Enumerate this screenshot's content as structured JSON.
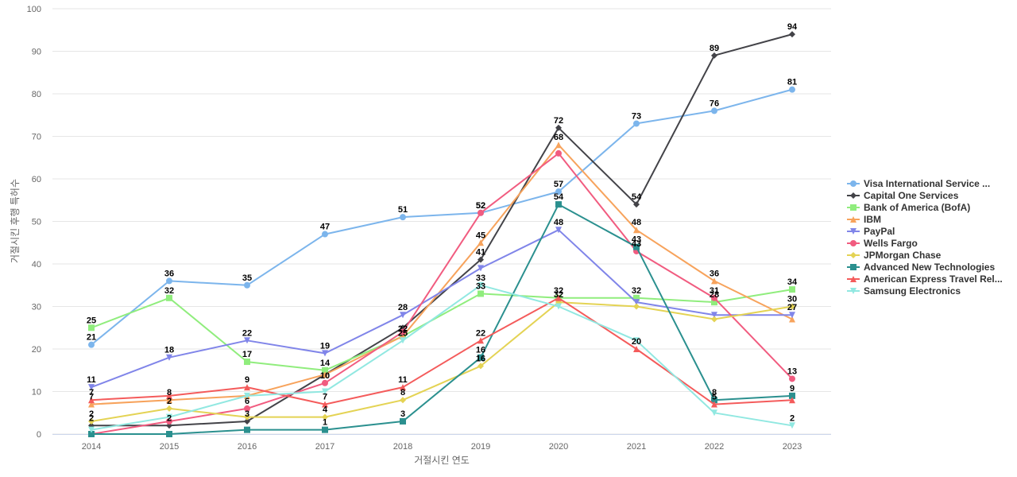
{
  "chart_data": {
    "type": "line",
    "title": "",
    "xlabel": "거절시킨 연도",
    "ylabel": "거절시킨 후행 특허수",
    "x": [
      "2014",
      "2015",
      "2016",
      "2017",
      "2018",
      "2019",
      "2020",
      "2021",
      "2022",
      "2023"
    ],
    "ylim": [
      0,
      100
    ],
    "yticks": [
      0,
      10,
      20,
      30,
      40,
      50,
      60,
      70,
      80,
      90,
      100
    ],
    "grid": true,
    "legend_position": "right",
    "series": [
      {
        "name": "Visa International Service ...",
        "color": "#7cb5ec",
        "marker": "circle",
        "values": [
          21,
          36,
          35,
          47,
          51,
          52,
          57,
          73,
          76,
          81
        ]
      },
      {
        "name": "Capital One Services",
        "color": "#434348",
        "marker": "diamond",
        "values": [
          2,
          2,
          3,
          14,
          25,
          41,
          72,
          54,
          89,
          94
        ]
      },
      {
        "name": "Bank of America (BofA)",
        "color": "#90ed7d",
        "marker": "square",
        "values": [
          25,
          32,
          17,
          15,
          23,
          33,
          32,
          32,
          31,
          34
        ]
      },
      {
        "name": "IBM",
        "color": "#f7a35c",
        "marker": "triangle",
        "values": [
          7,
          8,
          9,
          14,
          23,
          45,
          68,
          48,
          36,
          27
        ]
      },
      {
        "name": "PayPal",
        "color": "#8085e9",
        "marker": "triangle-down",
        "values": [
          11,
          18,
          22,
          19,
          28,
          39,
          48,
          31,
          28,
          28
        ]
      },
      {
        "name": "Wells Fargo",
        "color": "#f15c80",
        "marker": "circle",
        "values": [
          0,
          3,
          6,
          12,
          24,
          52,
          66,
          43,
          32,
          13
        ]
      },
      {
        "name": "JPMorgan Chase",
        "color": "#e4d354",
        "marker": "diamond",
        "values": [
          3,
          6,
          4,
          4,
          8,
          16,
          31,
          30,
          27,
          30
        ]
      },
      {
        "name": "Advanced New Technologies",
        "color": "#2b908f",
        "marker": "square",
        "values": [
          0,
          0,
          1,
          1,
          3,
          18,
          54,
          44,
          8,
          9
        ]
      },
      {
        "name": "American Express Travel Rel...",
        "color": "#f45b5b",
        "marker": "triangle",
        "values": [
          8,
          9,
          11,
          7,
          11,
          22,
          32,
          20,
          7,
          8
        ]
      },
      {
        "name": "Samsung Electronics",
        "color": "#91e8e1",
        "marker": "triangle-down",
        "values": [
          1,
          4,
          9,
          10,
          22,
          35,
          30,
          22,
          5,
          2
        ]
      }
    ],
    "data_labels": [
      {
        "series": 0,
        "values": [
          21,
          36,
          35,
          47,
          51,
          52,
          57,
          73,
          76,
          81
        ]
      },
      {
        "series": 1,
        "values": [
          2,
          2,
          3,
          null,
          null,
          41,
          72,
          54,
          89,
          94
        ]
      },
      {
        "series": 2,
        "values": [
          25,
          32,
          17,
          14,
          22,
          33,
          32,
          32,
          28,
          34
        ]
      },
      {
        "series": 3,
        "values": [
          7,
          8,
          null,
          null,
          null,
          45,
          68,
          48,
          36,
          null
        ]
      },
      {
        "series": 4,
        "values": [
          11,
          18,
          22,
          19,
          28,
          null,
          48,
          null,
          null,
          27
        ]
      },
      {
        "series": 5,
        "values": [
          null,
          null,
          6,
          10,
          null,
          52,
          null,
          43,
          31,
          13
        ]
      },
      {
        "series": 6,
        "values": [
          2,
          2,
          null,
          4,
          8,
          16,
          32,
          null,
          null,
          30
        ]
      },
      {
        "series": 7,
        "values": [
          null,
          null,
          null,
          1,
          3,
          16,
          54,
          43,
          8,
          9
        ]
      },
      {
        "series": 8,
        "values": [
          7,
          null,
          9,
          7,
          11,
          22,
          null,
          20,
          5,
          null
        ]
      },
      {
        "series": 9,
        "values": [
          null,
          null,
          null,
          null,
          25,
          33,
          null,
          null,
          null,
          2
        ]
      }
    ]
  }
}
